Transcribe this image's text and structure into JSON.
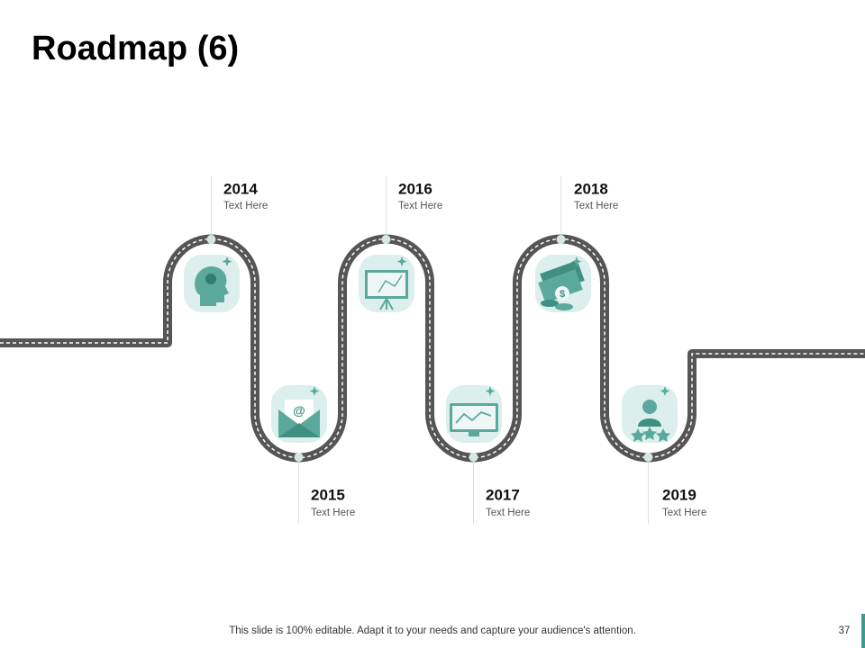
{
  "header": {
    "title": "Roadmap (6)"
  },
  "milestones": [
    {
      "year": "2014",
      "text": "Text Here"
    },
    {
      "year": "2015",
      "text": "Text Here"
    },
    {
      "year": "2016",
      "text": "Text Here"
    },
    {
      "year": "2017",
      "text": "Text Here"
    },
    {
      "year": "2018",
      "text": "Text Here"
    },
    {
      "year": "2019",
      "text": "Text Here"
    }
  ],
  "footer": {
    "note": "This slide is 100% editable. Adapt it to your needs and capture your audience's attention.",
    "page": "37"
  }
}
